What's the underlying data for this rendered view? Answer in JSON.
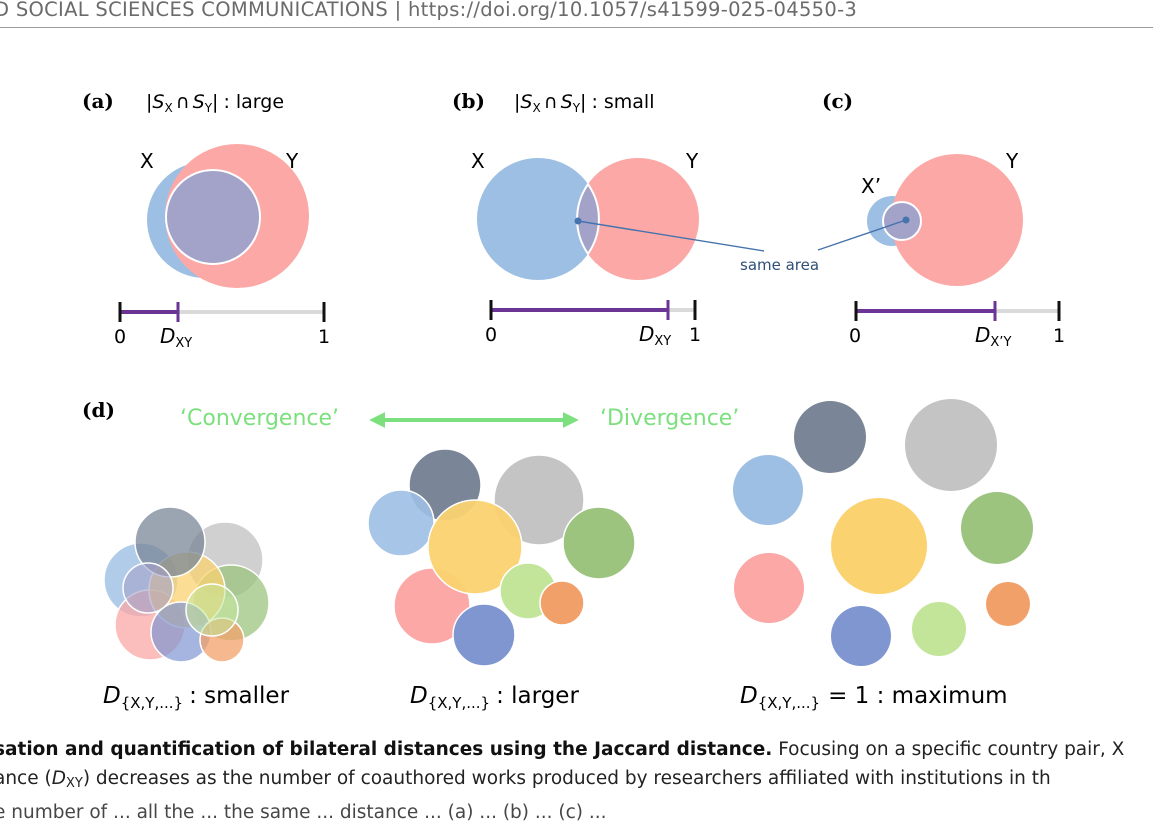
{
  "header": {
    "text": "D SOCIAL SCIENCES COMMUNICATIONS | https://doi.org/10.1057/s41599-025-04550-3"
  },
  "panels": {
    "a": {
      "label": "(a)",
      "condition": ": large",
      "set_x": "X",
      "set_y": "Y",
      "scale_min": "0",
      "scale_max": "1",
      "distance_main": "D",
      "distance_sub": "XY"
    },
    "b": {
      "label": "(b)",
      "condition": ": small",
      "set_x": "X",
      "set_y": "Y",
      "scale_min": "0",
      "scale_max": "1",
      "distance_main": "D",
      "distance_sub": "XY",
      "annotation": "same area"
    },
    "c": {
      "label": "(c)",
      "set_x": "X’",
      "set_y": "Y",
      "scale_min": "0",
      "scale_max": "1",
      "distance_main": "D",
      "distance_sub": "X’Y"
    },
    "d": {
      "label": "(d)",
      "convergence": "‘Convergence’",
      "divergence": "‘Divergence’",
      "left_suffix": ": smaller",
      "middle_suffix": ": larger",
      "right_suffix": "= 1 : maximum",
      "d_main": "D",
      "d_sub": "{X,Y,...}"
    }
  },
  "set_notation": {
    "s": "S",
    "x": "X",
    "y": "Y",
    "cap": "∩",
    "bar": "|"
  },
  "colors": {
    "blue": "#9dbfe3",
    "red": "#fba8a6",
    "overlap": "#a3a2c9",
    "navy": "#7a8697",
    "grey": "#c4c4c4",
    "yellow": "#fbd270",
    "green": "#9cc47f",
    "lightgreen": "#c3e59a",
    "orange": "#f2a06a",
    "indigo": "#7f96d1",
    "purple_bar": "#6a3595",
    "grey_bar": "#dadada",
    "arrow": "#7be07d",
    "annot_line": "#4573ad",
    "annot_text": "#2f4f76"
  },
  "caption": {
    "line1_bold": "sation and quantification of bilateral distances using the Jaccard distance.",
    "line1_rest": " Focusing on a specific country pair, X",
    "line2_a": "ance (",
    "line2_d": "D",
    "line2_sub": "XY",
    "line2_b": ") decreases as the number of coauthored works produced by researchers affiliated with institutions in th",
    "line3": "e number of ... all the ... the same ... distance ... (a) ... (b) ... (c) ..."
  }
}
